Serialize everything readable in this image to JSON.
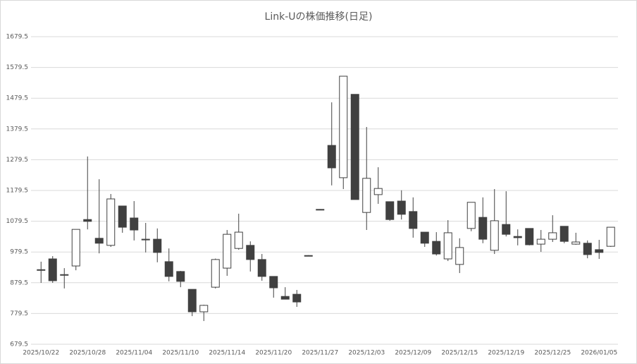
{
  "chart_data": {
    "type": "candlestick",
    "title": "Link-Uの株価推移(日足)",
    "categories": [
      "2025/10/22",
      null,
      null,
      null,
      "2025/10/28",
      null,
      null,
      null,
      "2025/11/04",
      null,
      null,
      null,
      "2025/11/10",
      null,
      null,
      null,
      "2025/11/14",
      null,
      null,
      null,
      "2025/11/20",
      null,
      null,
      null,
      "2025/11/27",
      null,
      null,
      null,
      "2025/12/03",
      null,
      null,
      null,
      "2025/12/09",
      null,
      null,
      null,
      "2025/12/15",
      null,
      null,
      null,
      "2025/12/19",
      null,
      null,
      null,
      "2025/12/25",
      null,
      null,
      null,
      "2026/01/05",
      null
    ],
    "open": [
      922,
      957,
      904,
      934,
      1085,
      1024,
      1001,
      1129,
      1090,
      1021,
      1021,
      948,
      916,
      858,
      785,
      865,
      927,
      991,
      1001,
      955,
      900,
      835,
      842,
      968,
      1118,
      1326,
      1221,
      1492,
      1108,
      1166,
      1143,
      1145,
      1111,
      1044,
      1014,
      957,
      939,
      1056,
      1092,
      985,
      1069,
      1030,
      1056,
      1005,
      1021,
      1063,
      1005,
      1008,
      987,
      998
    ],
    "high": [
      948,
      966,
      927,
      1053,
      1290,
      1216,
      1168,
      1129,
      1145,
      1074,
      1056,
      991,
      918,
      858,
      808,
      958,
      1051,
      1104,
      1014,
      973,
      900,
      865,
      856,
      969,
      1119,
      1466,
      1551,
      1492,
      1386,
      1255,
      1143,
      1180,
      1157,
      1044,
      1044,
      1083,
      1024,
      1141,
      1157,
      1184,
      1177,
      1053,
      1056,
      1051,
      1099,
      1063,
      1042,
      1017,
      1019,
      1060
    ],
    "low": [
      879,
      879,
      861,
      920,
      1053,
      975,
      996,
      1042,
      1017,
      978,
      946,
      884,
      865,
      771,
      755,
      861,
      902,
      987,
      916,
      886,
      831,
      826,
      801,
      967,
      1117,
      1196,
      1184,
      1150,
      1051,
      1136,
      1081,
      1085,
      1026,
      996,
      968,
      950,
      911,
      1047,
      1008,
      973,
      1030,
      1001,
      1001,
      980,
      1012,
      1008,
      1003,
      959,
      957,
      996
    ],
    "close": [
      922,
      886,
      906,
      1053,
      1079,
      1008,
      1152,
      1060,
      1051,
      1019,
      978,
      900,
      884,
      785,
      806,
      955,
      1037,
      1044,
      955,
      900,
      863,
      826,
      817,
      968,
      1118,
      1253,
      1551,
      1150,
      1219,
      1186,
      1085,
      1102,
      1056,
      1008,
      973,
      1042,
      994,
      1141,
      1021,
      1081,
      1037,
      1026,
      1003,
      1021,
      1042,
      1014,
      1012,
      971,
      978,
      1060
    ],
    "up_color": "#ffffff",
    "down_color": "#404040",
    "edge_color": "#404040",
    "ylim": [
      679.5,
      1679.5
    ],
    "yticks": [
      679.5,
      779.5,
      879.5,
      979.5,
      1079.5,
      1179.5,
      1279.5,
      1379.5,
      1479.5,
      1579.5,
      1679.5
    ],
    "grid": true
  }
}
